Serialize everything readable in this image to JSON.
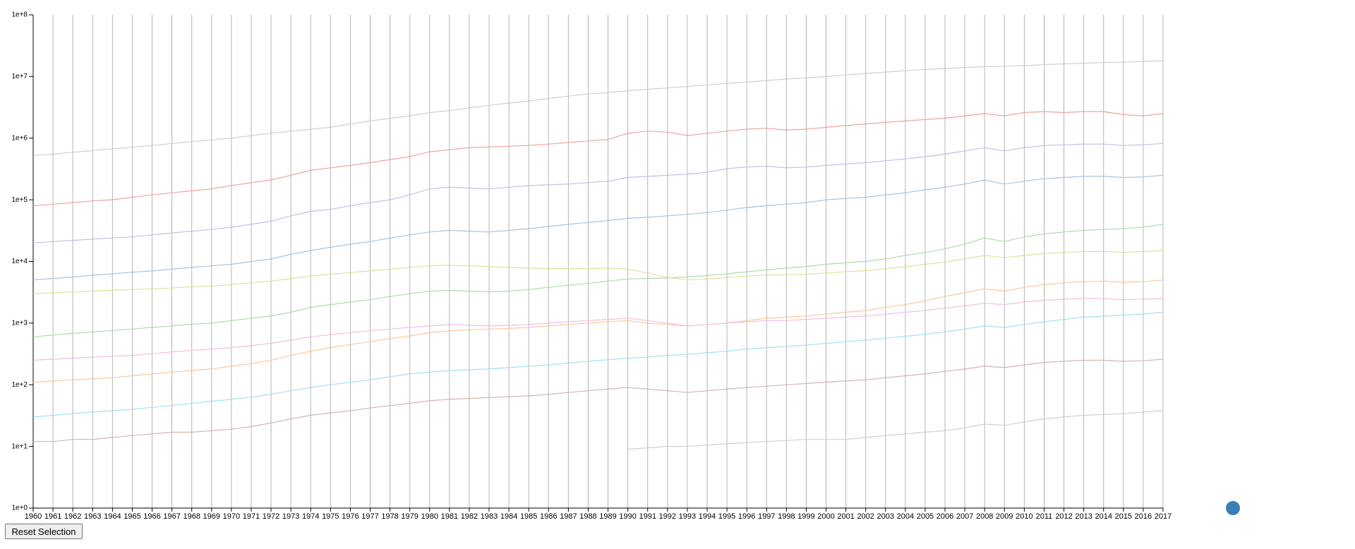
{
  "chart_data": {
    "type": "line",
    "yscale": "log",
    "grid": true,
    "x": [
      1960,
      1961,
      1962,
      1963,
      1964,
      1965,
      1966,
      1967,
      1968,
      1969,
      1970,
      1971,
      1972,
      1973,
      1974,
      1975,
      1976,
      1977,
      1978,
      1979,
      1980,
      1981,
      1982,
      1983,
      1984,
      1985,
      1986,
      1987,
      1988,
      1989,
      1990,
      1991,
      1992,
      1993,
      1994,
      1995,
      1996,
      1997,
      1998,
      1999,
      2000,
      2001,
      2002,
      2003,
      2004,
      2005,
      2006,
      2007,
      2008,
      2009,
      2010,
      2011,
      2012,
      2013,
      2014,
      2015,
      2016,
      2017
    ],
    "xlim": [
      1960,
      2017
    ],
    "ylim": [
      1,
      100000000
    ],
    "yticks": [
      {
        "value": 1,
        "label": "1e+0"
      },
      {
        "value": 10,
        "label": "1e+1"
      },
      {
        "value": 100,
        "label": "1e+2"
      },
      {
        "value": 1000,
        "label": "1e+3"
      },
      {
        "value": 10000,
        "label": "1e+4"
      },
      {
        "value": 100000,
        "label": "1e+5"
      },
      {
        "value": 1000000,
        "label": "1e+6"
      },
      {
        "value": 10000000,
        "label": "1e+7"
      },
      {
        "value": 100000000,
        "label": "1e+8"
      }
    ],
    "series": [
      {
        "color": "#cfcfcf",
        "values": [
          520000,
          550000,
          590000,
          630000,
          670000,
          710000,
          760000,
          820000,
          880000,
          940000,
          1000000,
          1100000,
          1200000,
          1300000,
          1400000,
          1500000,
          1700000,
          1900000,
          2100000,
          2300000,
          2600000,
          2800000,
          3100000,
          3400000,
          3700000,
          4000000,
          4400000,
          4800000,
          5200000,
          5500000,
          5900000,
          6200000,
          6500000,
          6900000,
          7300000,
          7700000,
          8100000,
          8600000,
          9100000,
          9500000,
          10000000,
          10600000,
          11200000,
          11800000,
          12400000,
          13000000,
          13500000,
          14000000,
          14400000,
          14700000,
          15000000,
          15500000,
          16000000,
          16400000,
          16800000,
          17000000,
          17500000,
          18000000
        ]
      },
      {
        "color": "#eda3a3",
        "values": [
          80000,
          85000,
          90000,
          96000,
          100000,
          110000,
          120000,
          130000,
          140000,
          150000,
          170000,
          190000,
          210000,
          250000,
          300000,
          330000,
          360000,
          400000,
          450000,
          500000,
          600000,
          650000,
          700000,
          720000,
          740000,
          760000,
          800000,
          850000,
          900000,
          950000,
          1200000,
          1300000,
          1250000,
          1100000,
          1200000,
          1300000,
          1400000,
          1450000,
          1350000,
          1400000,
          1500000,
          1600000,
          1700000,
          1800000,
          1900000,
          2000000,
          2100000,
          2300000,
          2500000,
          2300000,
          2600000,
          2700000,
          2600000,
          2700000,
          2700000,
          2400000,
          2300000,
          2500000
        ]
      },
      {
        "color": "#a6c4e0",
        "values": [
          5000,
          5300,
          5600,
          6000,
          6300,
          6700,
          7000,
          7500,
          8000,
          8500,
          9000,
          10000,
          11000,
          13000,
          15000,
          17000,
          19000,
          21000,
          24000,
          27000,
          30000,
          32000,
          31000,
          30000,
          32000,
          34000,
          37000,
          40000,
          43000,
          46000,
          50000,
          52000,
          55000,
          58000,
          62000,
          68000,
          75000,
          80000,
          85000,
          90000,
          100000,
          105000,
          110000,
          120000,
          130000,
          145000,
          160000,
          180000,
          210000,
          180000,
          200000,
          220000,
          230000,
          240000,
          240000,
          230000,
          235000,
          250000
        ]
      },
      {
        "color": "#aedbae",
        "values": [
          600,
          640,
          680,
          720,
          760,
          800,
          850,
          900,
          960,
          1000,
          1100,
          1200,
          1300,
          1500,
          1800,
          2000,
          2200,
          2400,
          2700,
          3000,
          3300,
          3400,
          3300,
          3200,
          3300,
          3500,
          3800,
          4100,
          4400,
          4800,
          5200,
          5300,
          5400,
          5600,
          5900,
          6300,
          6800,
          7300,
          7800,
          8300,
          9000,
          9500,
          10000,
          11000,
          12500,
          14000,
          16000,
          19000,
          24000,
          21000,
          25000,
          28000,
          30000,
          32000,
          33000,
          34000,
          36000,
          40000
        ]
      },
      {
        "color": "#fcc89a",
        "values": [
          110,
          115,
          120,
          125,
          130,
          140,
          150,
          160,
          170,
          180,
          200,
          220,
          250,
          300,
          350,
          400,
          450,
          500,
          560,
          620,
          700,
          750,
          780,
          800,
          820,
          850,
          900,
          950,
          1000,
          1050,
          1100,
          1000,
          950,
          900,
          950,
          1000,
          1100,
          1200,
          1250,
          1300,
          1400,
          1500,
          1600,
          1800,
          2000,
          2300,
          2700,
          3100,
          3600,
          3300,
          3800,
          4200,
          4500,
          4700,
          4800,
          4600,
          4700,
          5000
        ]
      },
      {
        "color": "#cdbbe2",
        "values": [
          20000,
          21000,
          22000,
          23000,
          24000,
          25000,
          27000,
          29000,
          31000,
          33000,
          36000,
          40000,
          45000,
          55000,
          65000,
          70000,
          80000,
          90000,
          100000,
          120000,
          150000,
          160000,
          155000,
          150000,
          160000,
          170000,
          175000,
          180000,
          190000,
          200000,
          230000,
          240000,
          250000,
          260000,
          280000,
          320000,
          340000,
          350000,
          330000,
          340000,
          360000,
          380000,
          400000,
          430000,
          460000,
          500000,
          550000,
          620000,
          700000,
          620000,
          700000,
          760000,
          780000,
          800000,
          800000,
          760000,
          780000,
          820000
        ]
      },
      {
        "color": "#a3e2ea",
        "values": [
          30,
          32,
          34,
          36,
          38,
          40,
          43,
          46,
          50,
          54,
          58,
          63,
          70,
          80,
          90,
          100,
          110,
          120,
          135,
          150,
          160,
          170,
          175,
          180,
          190,
          200,
          210,
          225,
          240,
          255,
          270,
          280,
          300,
          310,
          330,
          350,
          380,
          400,
          420,
          440,
          470,
          500,
          530,
          570,
          610,
          660,
          720,
          800,
          900,
          850,
          950,
          1050,
          1150,
          1250,
          1300,
          1350,
          1400,
          1500
        ]
      },
      {
        "color": "#d2b6b0",
        "values": [
          12,
          12,
          13,
          13,
          14,
          15,
          16,
          17,
          17,
          18,
          19,
          21,
          24,
          28,
          32,
          35,
          38,
          42,
          46,
          50,
          55,
          58,
          60,
          62,
          64,
          66,
          70,
          75,
          80,
          85,
          90,
          85,
          80,
          75,
          80,
          85,
          90,
          95,
          100,
          105,
          110,
          115,
          120,
          130,
          140,
          150,
          165,
          180,
          200,
          190,
          210,
          230,
          240,
          250,
          250,
          240,
          245,
          260
        ]
      },
      {
        "color": "#d0d0d0",
        "values": [
          null,
          null,
          null,
          null,
          null,
          null,
          null,
          null,
          null,
          null,
          null,
          null,
          null,
          null,
          null,
          null,
          null,
          null,
          null,
          null,
          null,
          null,
          null,
          null,
          null,
          null,
          null,
          null,
          null,
          null,
          9,
          9.5,
          10,
          10,
          10.5,
          11,
          11.5,
          12,
          12.5,
          13,
          13,
          13,
          14,
          15,
          16,
          17,
          18,
          20,
          23,
          22,
          25,
          28,
          30,
          32,
          33,
          34,
          36,
          38
        ]
      },
      {
        "color": "#dfe09c",
        "values": [
          3000,
          3100,
          3200,
          3300,
          3400,
          3500,
          3600,
          3700,
          3900,
          4000,
          4200,
          4500,
          4800,
          5300,
          5800,
          6200,
          6600,
          7000,
          7500,
          8000,
          8500,
          8700,
          8500,
          8200,
          8000,
          7800,
          7700,
          7600,
          7700,
          7800,
          7500,
          6500,
          5500,
          5000,
          5200,
          5500,
          5800,
          6000,
          6100,
          6200,
          6500,
          6800,
          7100,
          7600,
          8200,
          9000,
          9800,
          11000,
          12500,
          11500,
          12500,
          13500,
          14000,
          14500,
          14500,
          14000,
          14500,
          15000
        ]
      },
      {
        "color": "#f2bfe2",
        "values": [
          250,
          260,
          270,
          280,
          290,
          300,
          320,
          340,
          360,
          380,
          400,
          430,
          470,
          530,
          600,
          650,
          700,
          750,
          800,
          850,
          900,
          950,
          920,
          900,
          920,
          950,
          1000,
          1050,
          1100,
          1150,
          1200,
          1100,
          1000,
          900,
          950,
          1000,
          1050,
          1100,
          1100,
          1150,
          1200,
          1250,
          1300,
          1400,
          1500,
          1600,
          1750,
          1900,
          2100,
          2000,
          2200,
          2350,
          2450,
          2500,
          2500,
          2400,
          2450,
          2500
        ]
      }
    ]
  },
  "controls": {
    "reset_button": "Reset Selection"
  }
}
